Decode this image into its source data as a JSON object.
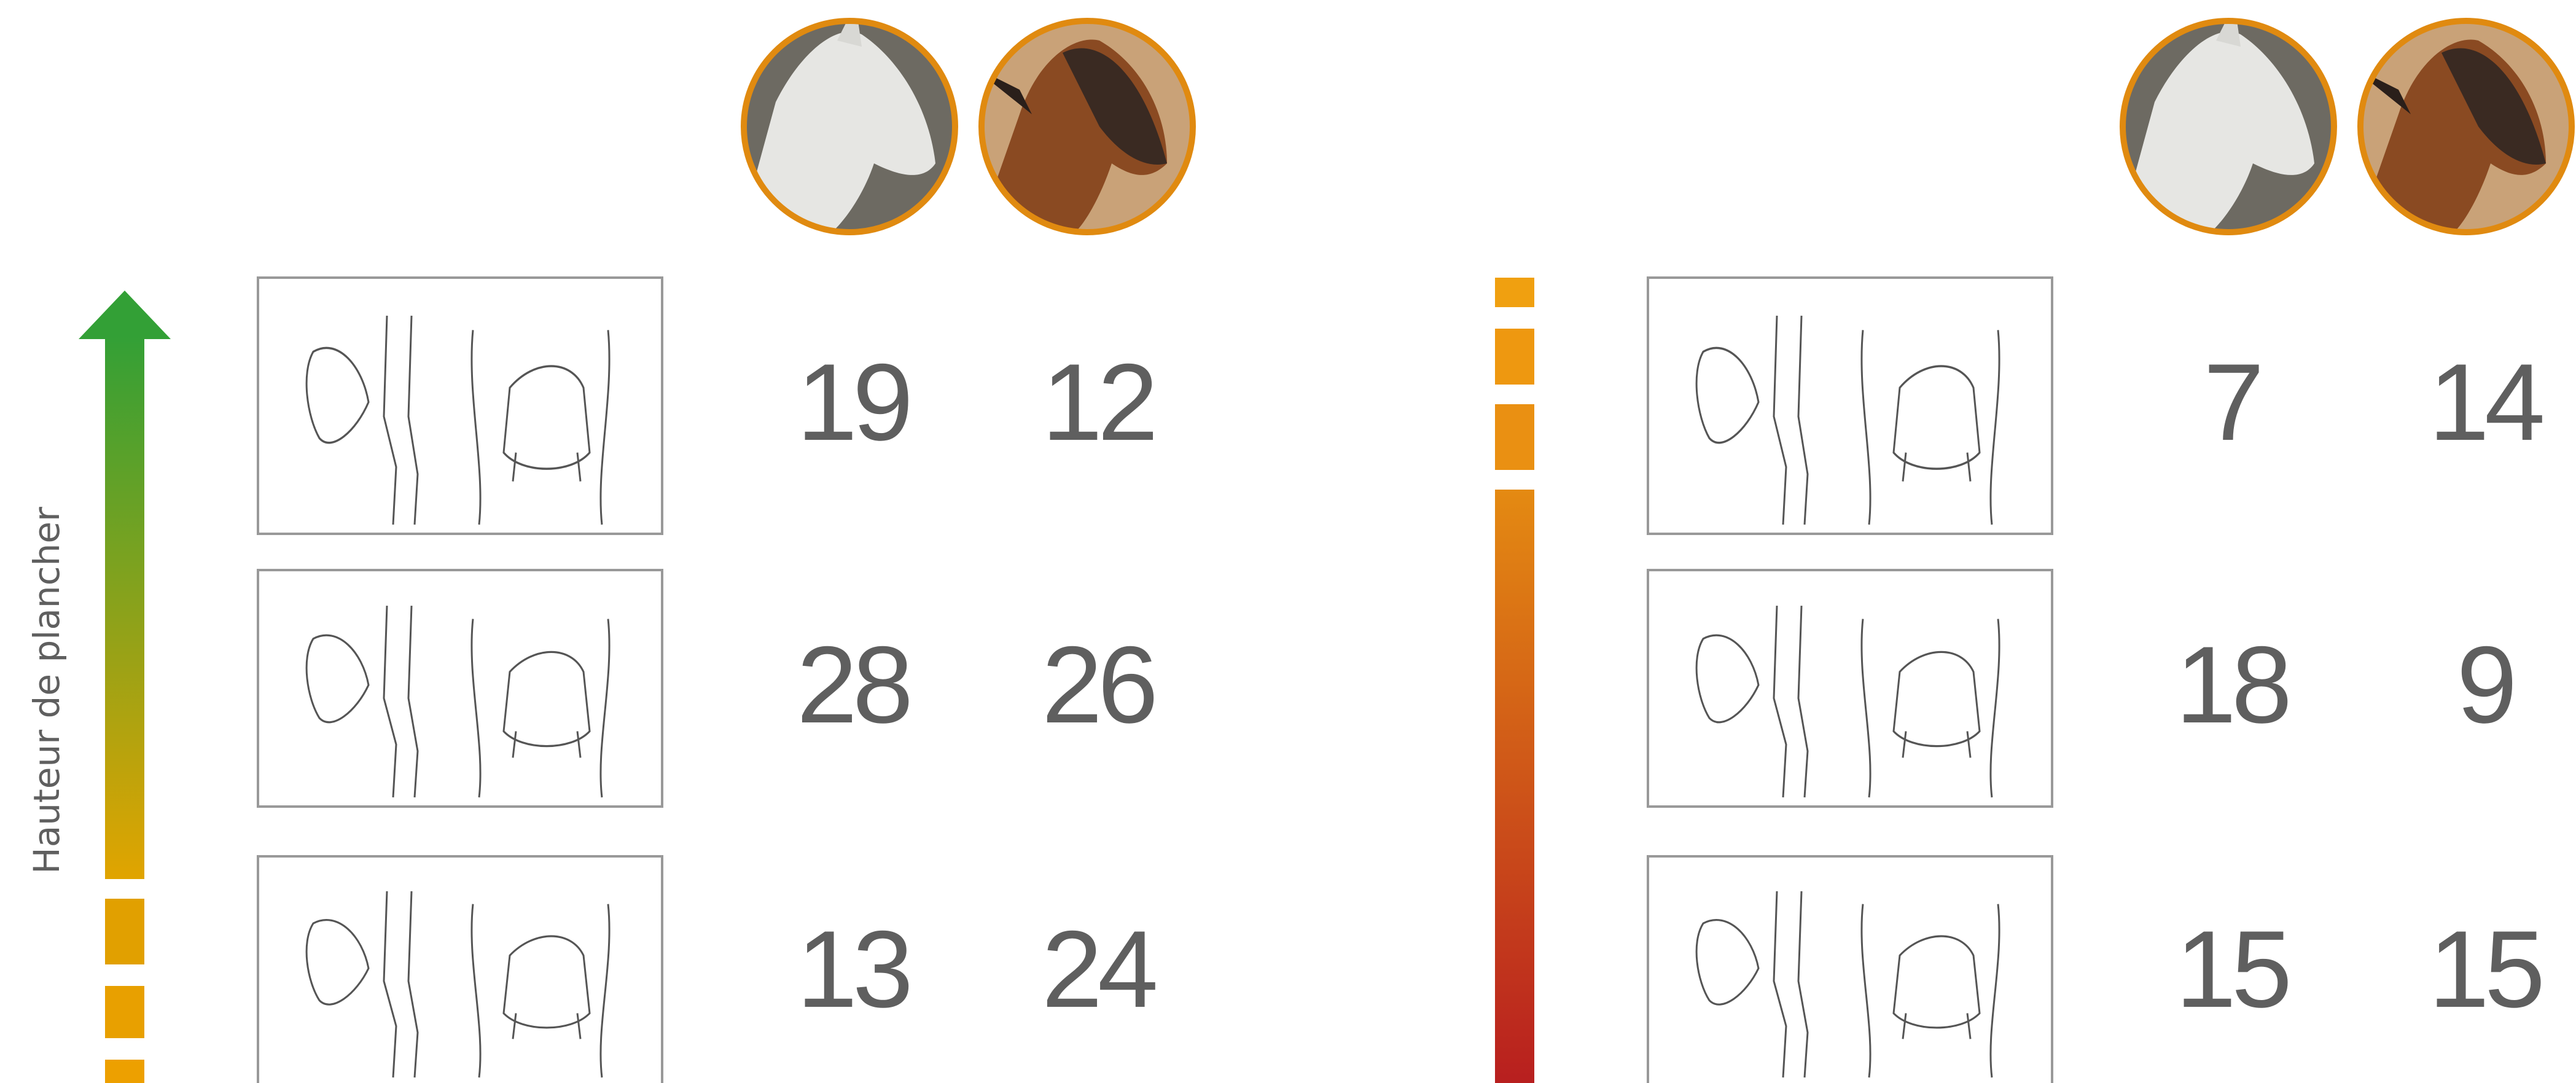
{
  "left": {
    "axis_label": "Hauteur de plancher",
    "rows": [
      [
        19,
        12
      ],
      [
        28,
        26
      ],
      [
        13,
        24
      ]
    ]
  },
  "right": {
    "rows": [
      [
        7,
        14
      ],
      [
        18,
        9
      ],
      [
        15,
        15
      ]
    ]
  }
}
